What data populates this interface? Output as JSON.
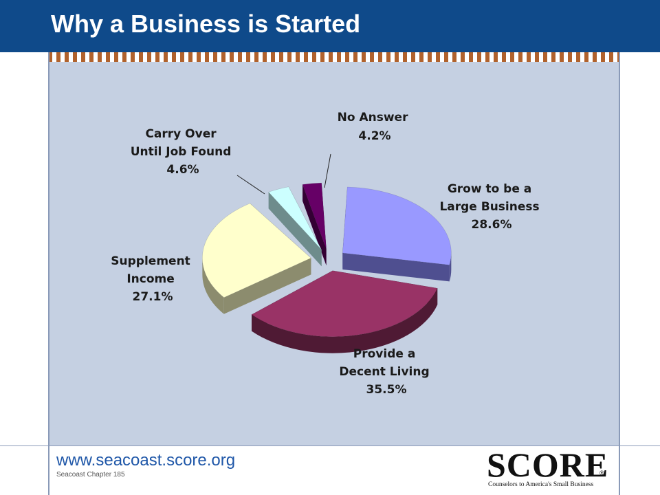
{
  "slide": {
    "title": "Why a Business is Started"
  },
  "footer": {
    "url": "www.seacoast.score.org",
    "chapter": "Seacoast Chapter 185",
    "logo_word": "SCORE",
    "logo_mark": "®",
    "logo_tagline": "Counselors to America's Small Business"
  },
  "colors": {
    "header": "#0f4a8a",
    "panel": "#c5d0e2",
    "accent_dash": "#b0622d",
    "url": "#1f57a8"
  },
  "chart_data": {
    "type": "pie",
    "style": "3d-exploded",
    "unit": "%",
    "slices": [
      {
        "label_lines": [
          "Grow to be a",
          "Large Business"
        ],
        "value": 28.6,
        "value_label": "28.6%",
        "top_color": "#9999ff",
        "side_color": "#4f4f90"
      },
      {
        "label_lines": [
          "Provide a",
          "Decent Living"
        ],
        "value": 35.5,
        "value_label": "35.5%",
        "top_color": "#993366",
        "side_color": "#4f1a34"
      },
      {
        "label_lines": [
          "Supplement",
          "Income"
        ],
        "value": 27.1,
        "value_label": "27.1%",
        "top_color": "#ffffcc",
        "side_color": "#8c8c6e"
      },
      {
        "label_lines": [
          "Carry Over",
          "Until Job Found"
        ],
        "value": 4.6,
        "value_label": "4.6%",
        "top_color": "#ccffff",
        "side_color": "#6e8c8c"
      },
      {
        "label_lines": [
          "No Answer"
        ],
        "value": 4.2,
        "value_label": "4.2%",
        "top_color": "#660066",
        "side_color": "#330033"
      }
    ]
  }
}
